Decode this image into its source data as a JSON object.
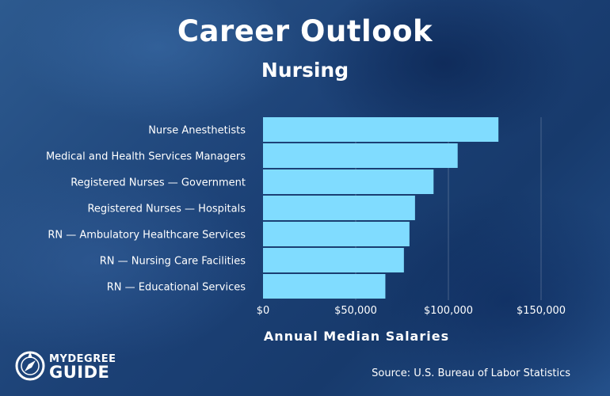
{
  "header": {
    "title": "Career Outlook",
    "subtitle": "Nursing"
  },
  "chart_data": {
    "type": "bar",
    "orientation": "horizontal",
    "categories": [
      "Nurse Anesthetists",
      "Medical and Health Services Managers",
      "Registered Nurses — Government",
      "Registered Nurses — Hospitals",
      "RN — Ambulatory Healthcare Services",
      "RN — Nursing Care Facilities",
      "RN — Educational Services"
    ],
    "values": [
      127000,
      105000,
      92000,
      82000,
      79000,
      76000,
      66000
    ],
    "xlabel": "Annual Median Salaries",
    "xlim": [
      0,
      150000
    ],
    "xticks": [
      "$0",
      "$50,000",
      "$100,000",
      "$150,000"
    ],
    "bar_color": "#80dcff",
    "grid": true
  },
  "footer": {
    "logo_top": "MYDEGREE",
    "logo_bottom": "GUIDE",
    "source": "Source: U.S. Bureau of Labor Statistics"
  }
}
